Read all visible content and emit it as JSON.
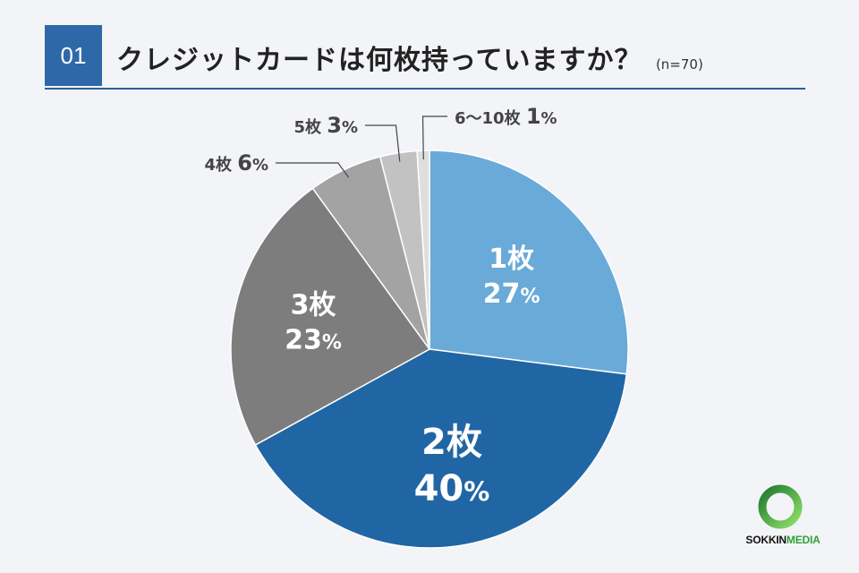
{
  "header": {
    "question_number": "01",
    "title": "クレジットカードは何枚持っていますか？",
    "sample": "(n=70)"
  },
  "chart_data": {
    "type": "pie",
    "title": "クレジットカードは何枚持っていますか？",
    "categories": [
      "1枚",
      "2枚",
      "3枚",
      "4枚",
      "5枚",
      "6〜10枚"
    ],
    "values": [
      27,
      40,
      23,
      6,
      3,
      1
    ],
    "unit": "%",
    "colors": [
      "#6aaad8",
      "#2166a4",
      "#7d7d7d",
      "#a3a3a3",
      "#c2c2c2",
      "#dedede"
    ],
    "label_colors": [
      "#ffffff",
      "#ffffff",
      "#ffffff",
      "#333333",
      "#333333",
      "#333333"
    ],
    "label_placement": [
      "inside",
      "inside",
      "inside",
      "outside",
      "outside",
      "outside"
    ]
  },
  "logo": {
    "brand_part1": "SOKKIN",
    "brand_part2": "MEDIA",
    "accent_color": "#2fa03a"
  }
}
